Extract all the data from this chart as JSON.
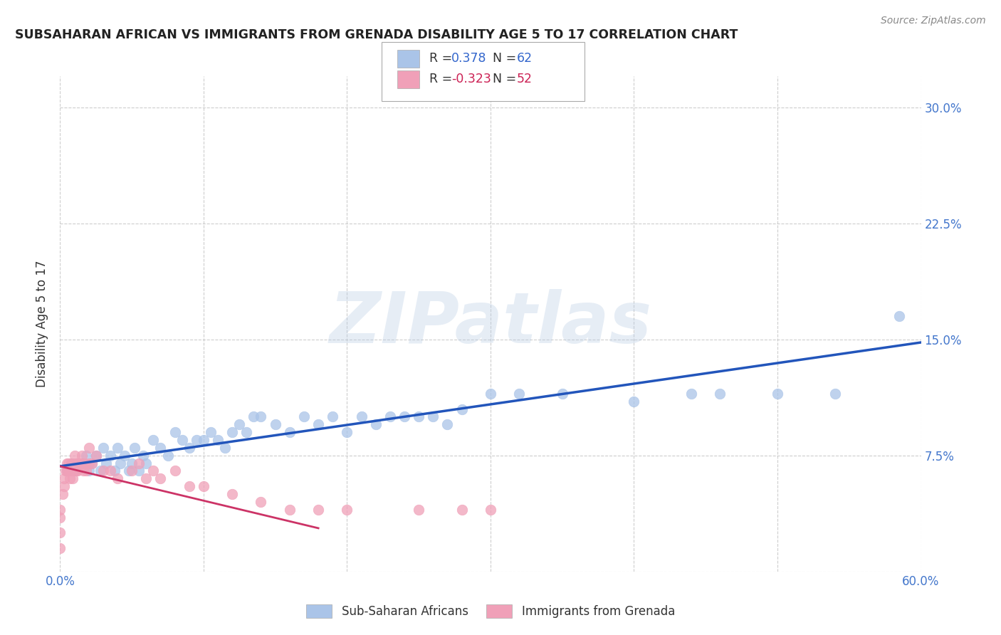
{
  "title": "SUBSAHARAN AFRICAN VS IMMIGRANTS FROM GRENADA DISABILITY AGE 5 TO 17 CORRELATION CHART",
  "source": "Source: ZipAtlas.com",
  "ylabel": "Disability Age 5 to 17",
  "xlim": [
    0.0,
    0.6
  ],
  "ylim": [
    0.0,
    0.32
  ],
  "xticks": [
    0.0,
    0.1,
    0.2,
    0.3,
    0.4,
    0.5,
    0.6
  ],
  "xticklabels": [
    "0.0%",
    "",
    "",
    "",
    "",
    "",
    "60.0%"
  ],
  "yticks": [
    0.0,
    0.075,
    0.15,
    0.225,
    0.3
  ],
  "yticklabels_right": [
    "",
    "7.5%",
    "15.0%",
    "22.5%",
    "30.0%"
  ],
  "grid_color": "#c8c8c8",
  "background_color": "#ffffff",
  "watermark": "ZIPatlas",
  "series1_color": "#aac4e8",
  "series2_color": "#f0a0b8",
  "line1_color": "#2255bb",
  "line2_color": "#cc3366",
  "legend1_label": "Sub-Saharan Africans",
  "legend2_label": "Immigrants from Grenada",
  "tick_color": "#4477cc",
  "title_color": "#222222",
  "ylabel_color": "#333333",
  "scatter1_x": [
    0.005,
    0.008,
    0.01,
    0.012,
    0.015,
    0.018,
    0.02,
    0.022,
    0.025,
    0.028,
    0.03,
    0.032,
    0.035,
    0.038,
    0.04,
    0.042,
    0.045,
    0.048,
    0.05,
    0.052,
    0.055,
    0.058,
    0.06,
    0.065,
    0.07,
    0.075,
    0.08,
    0.085,
    0.09,
    0.095,
    0.1,
    0.105,
    0.11,
    0.115,
    0.12,
    0.125,
    0.13,
    0.135,
    0.14,
    0.15,
    0.16,
    0.17,
    0.18,
    0.19,
    0.2,
    0.21,
    0.22,
    0.23,
    0.24,
    0.25,
    0.26,
    0.27,
    0.28,
    0.3,
    0.32,
    0.35,
    0.4,
    0.44,
    0.46,
    0.5,
    0.54,
    0.585
  ],
  "scatter1_y": [
    0.065,
    0.07,
    0.065,
    0.07,
    0.07,
    0.075,
    0.065,
    0.07,
    0.075,
    0.065,
    0.08,
    0.07,
    0.075,
    0.065,
    0.08,
    0.07,
    0.075,
    0.065,
    0.07,
    0.08,
    0.065,
    0.075,
    0.07,
    0.085,
    0.08,
    0.075,
    0.09,
    0.085,
    0.08,
    0.085,
    0.085,
    0.09,
    0.085,
    0.08,
    0.09,
    0.095,
    0.09,
    0.1,
    0.1,
    0.095,
    0.09,
    0.1,
    0.095,
    0.1,
    0.09,
    0.1,
    0.095,
    0.1,
    0.1,
    0.1,
    0.1,
    0.095,
    0.105,
    0.115,
    0.115,
    0.115,
    0.11,
    0.115,
    0.115,
    0.115,
    0.115,
    0.165
  ],
  "scatter2_x": [
    0.0,
    0.0,
    0.0,
    0.0,
    0.002,
    0.003,
    0.003,
    0.004,
    0.005,
    0.005,
    0.006,
    0.006,
    0.007,
    0.007,
    0.008,
    0.008,
    0.009,
    0.01,
    0.01,
    0.01,
    0.011,
    0.012,
    0.012,
    0.013,
    0.015,
    0.015,
    0.016,
    0.017,
    0.018,
    0.02,
    0.02,
    0.022,
    0.025,
    0.03,
    0.035,
    0.04,
    0.05,
    0.055,
    0.06,
    0.065,
    0.07,
    0.08,
    0.09,
    0.1,
    0.12,
    0.14,
    0.16,
    0.18,
    0.2,
    0.25,
    0.28,
    0.3
  ],
  "scatter2_y": [
    0.015,
    0.025,
    0.035,
    0.04,
    0.05,
    0.055,
    0.06,
    0.065,
    0.065,
    0.07,
    0.065,
    0.07,
    0.06,
    0.065,
    0.065,
    0.07,
    0.06,
    0.065,
    0.07,
    0.075,
    0.065,
    0.07,
    0.065,
    0.07,
    0.075,
    0.07,
    0.065,
    0.07,
    0.065,
    0.08,
    0.07,
    0.07,
    0.075,
    0.065,
    0.065,
    0.06,
    0.065,
    0.07,
    0.06,
    0.065,
    0.06,
    0.065,
    0.055,
    0.055,
    0.05,
    0.045,
    0.04,
    0.04,
    0.04,
    0.04,
    0.04,
    0.04
  ],
  "blue_line_x0": 0.0,
  "blue_line_y0": 0.068,
  "blue_line_x1": 0.6,
  "blue_line_y1": 0.148,
  "pink_line_x0": 0.0,
  "pink_line_y0": 0.068,
  "pink_line_x1": 0.18,
  "pink_line_y1": 0.028
}
